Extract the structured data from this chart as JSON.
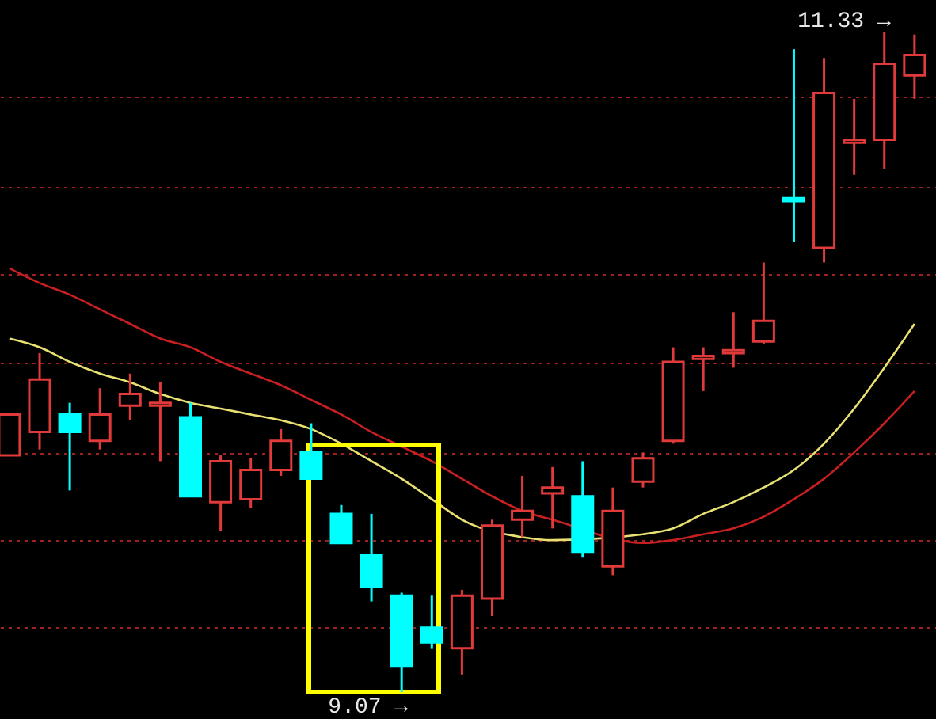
{
  "chart_data": {
    "type": "candlestick",
    "categories": [
      null,
      null,
      null,
      null,
      null,
      null,
      null,
      null,
      null,
      null,
      null,
      null,
      null,
      null,
      null,
      null,
      null,
      null,
      null,
      null,
      null,
      null,
      null,
      null,
      null,
      null,
      null,
      null,
      null,
      null,
      null
    ],
    "ohlc": [
      [
        9.88,
        10.02,
        9.88,
        10.02
      ],
      [
        9.96,
        10.23,
        9.9,
        10.14
      ],
      [
        10.02,
        10.06,
        9.76,
        9.96
      ],
      [
        9.93,
        10.11,
        9.9,
        10.02
      ],
      [
        10.05,
        10.16,
        10.0,
        10.09
      ],
      [
        10.05,
        10.13,
        9.86,
        10.06
      ],
      [
        10.01,
        10.06,
        9.74,
        9.74
      ],
      [
        9.72,
        9.88,
        9.62,
        9.86
      ],
      [
        9.73,
        9.87,
        9.7,
        9.83
      ],
      [
        9.83,
        9.97,
        9.81,
        9.93
      ],
      [
        9.89,
        9.99,
        9.8,
        9.8
      ],
      [
        9.68,
        9.71,
        9.58,
        9.58
      ],
      [
        9.54,
        9.68,
        9.38,
        9.43
      ],
      [
        9.4,
        9.41,
        9.07,
        9.16
      ],
      [
        9.29,
        9.4,
        9.22,
        9.24
      ],
      [
        9.22,
        9.42,
        9.13,
        9.4
      ],
      [
        9.39,
        9.66,
        9.33,
        9.64
      ],
      [
        9.66,
        9.81,
        9.6,
        9.69
      ],
      [
        9.75,
        9.84,
        9.63,
        9.77
      ],
      [
        9.74,
        9.86,
        9.53,
        9.55
      ],
      [
        9.5,
        9.77,
        9.47,
        9.69
      ],
      [
        9.79,
        9.89,
        9.77,
        9.87
      ],
      [
        9.93,
        10.25,
        9.92,
        10.2
      ],
      [
        10.21,
        10.25,
        10.1,
        10.22
      ],
      [
        10.23,
        10.37,
        10.18,
        10.24
      ],
      [
        10.27,
        10.54,
        10.26,
        10.34
      ],
      [
        10.76,
        11.27,
        10.61,
        10.75
      ],
      [
        10.59,
        11.24,
        10.54,
        11.12
      ],
      [
        10.95,
        11.1,
        10.84,
        10.96
      ],
      [
        10.96,
        11.33,
        10.86,
        11.22
      ],
      [
        11.18,
        11.32,
        11.1,
        11.25
      ]
    ],
    "colors": [
      "#e03a3a",
      "#e03a3a",
      "#00ffff",
      "#e03a3a",
      "#e03a3a",
      "#e03a3a",
      "#00ffff",
      "#e03a3a",
      "#e03a3a",
      "#e03a3a",
      "#00ffff",
      "#00ffff",
      "#00ffff",
      "#00ffff",
      "#00ffff",
      "#e03a3a",
      "#e03a3a",
      "#e03a3a",
      "#e03a3a",
      "#00ffff",
      "#e03a3a",
      "#e03a3a",
      "#e03a3a",
      "#e03a3a",
      "#e03a3a",
      "#e03a3a",
      "#00ffff",
      "#e03a3a",
      "#e03a3a",
      "#e03a3a",
      "#e03a3a"
    ],
    "series": [
      {
        "type": "line",
        "color": "#e8e070",
        "values": [
          10.28,
          10.25,
          10.2,
          10.16,
          10.13,
          10.09,
          10.06,
          10.04,
          10.02,
          10.0,
          9.97,
          9.92,
          9.86,
          9.8,
          9.73,
          9.66,
          null,
          9.6,
          9.59,
          null,
          null,
          9.61,
          9.63,
          9.68,
          9.72,
          9.77,
          9.83,
          9.92,
          10.04,
          10.18,
          10.33
        ]
      },
      {
        "type": "line",
        "color": "#c82020",
        "values": [
          10.52,
          10.47,
          10.43,
          10.38,
          10.33,
          10.28,
          10.25,
          10.2,
          10.16,
          10.12,
          10.07,
          10.02,
          9.96,
          9.91,
          9.86,
          9.8,
          9.74,
          9.69,
          9.66,
          null,
          null,
          9.58,
          9.59,
          9.61,
          9.63,
          9.67,
          9.73,
          9.8,
          9.89,
          9.99,
          10.1
        ]
      }
    ],
    "yticks": [
      {
        "value": 9.29,
        "label": null
      },
      {
        "value": 9.59,
        "label": null
      },
      {
        "value": 9.89,
        "label": null
      },
      {
        "value": 10.2,
        "label": null
      },
      {
        "value": 10.5,
        "label": null
      },
      {
        "value": 10.8,
        "label": null
      },
      {
        "value": 11.11,
        "label": null
      }
    ],
    "annotations": [
      "11.33 →",
      "9.07 →"
    ],
    "grid": "y"
  }
}
